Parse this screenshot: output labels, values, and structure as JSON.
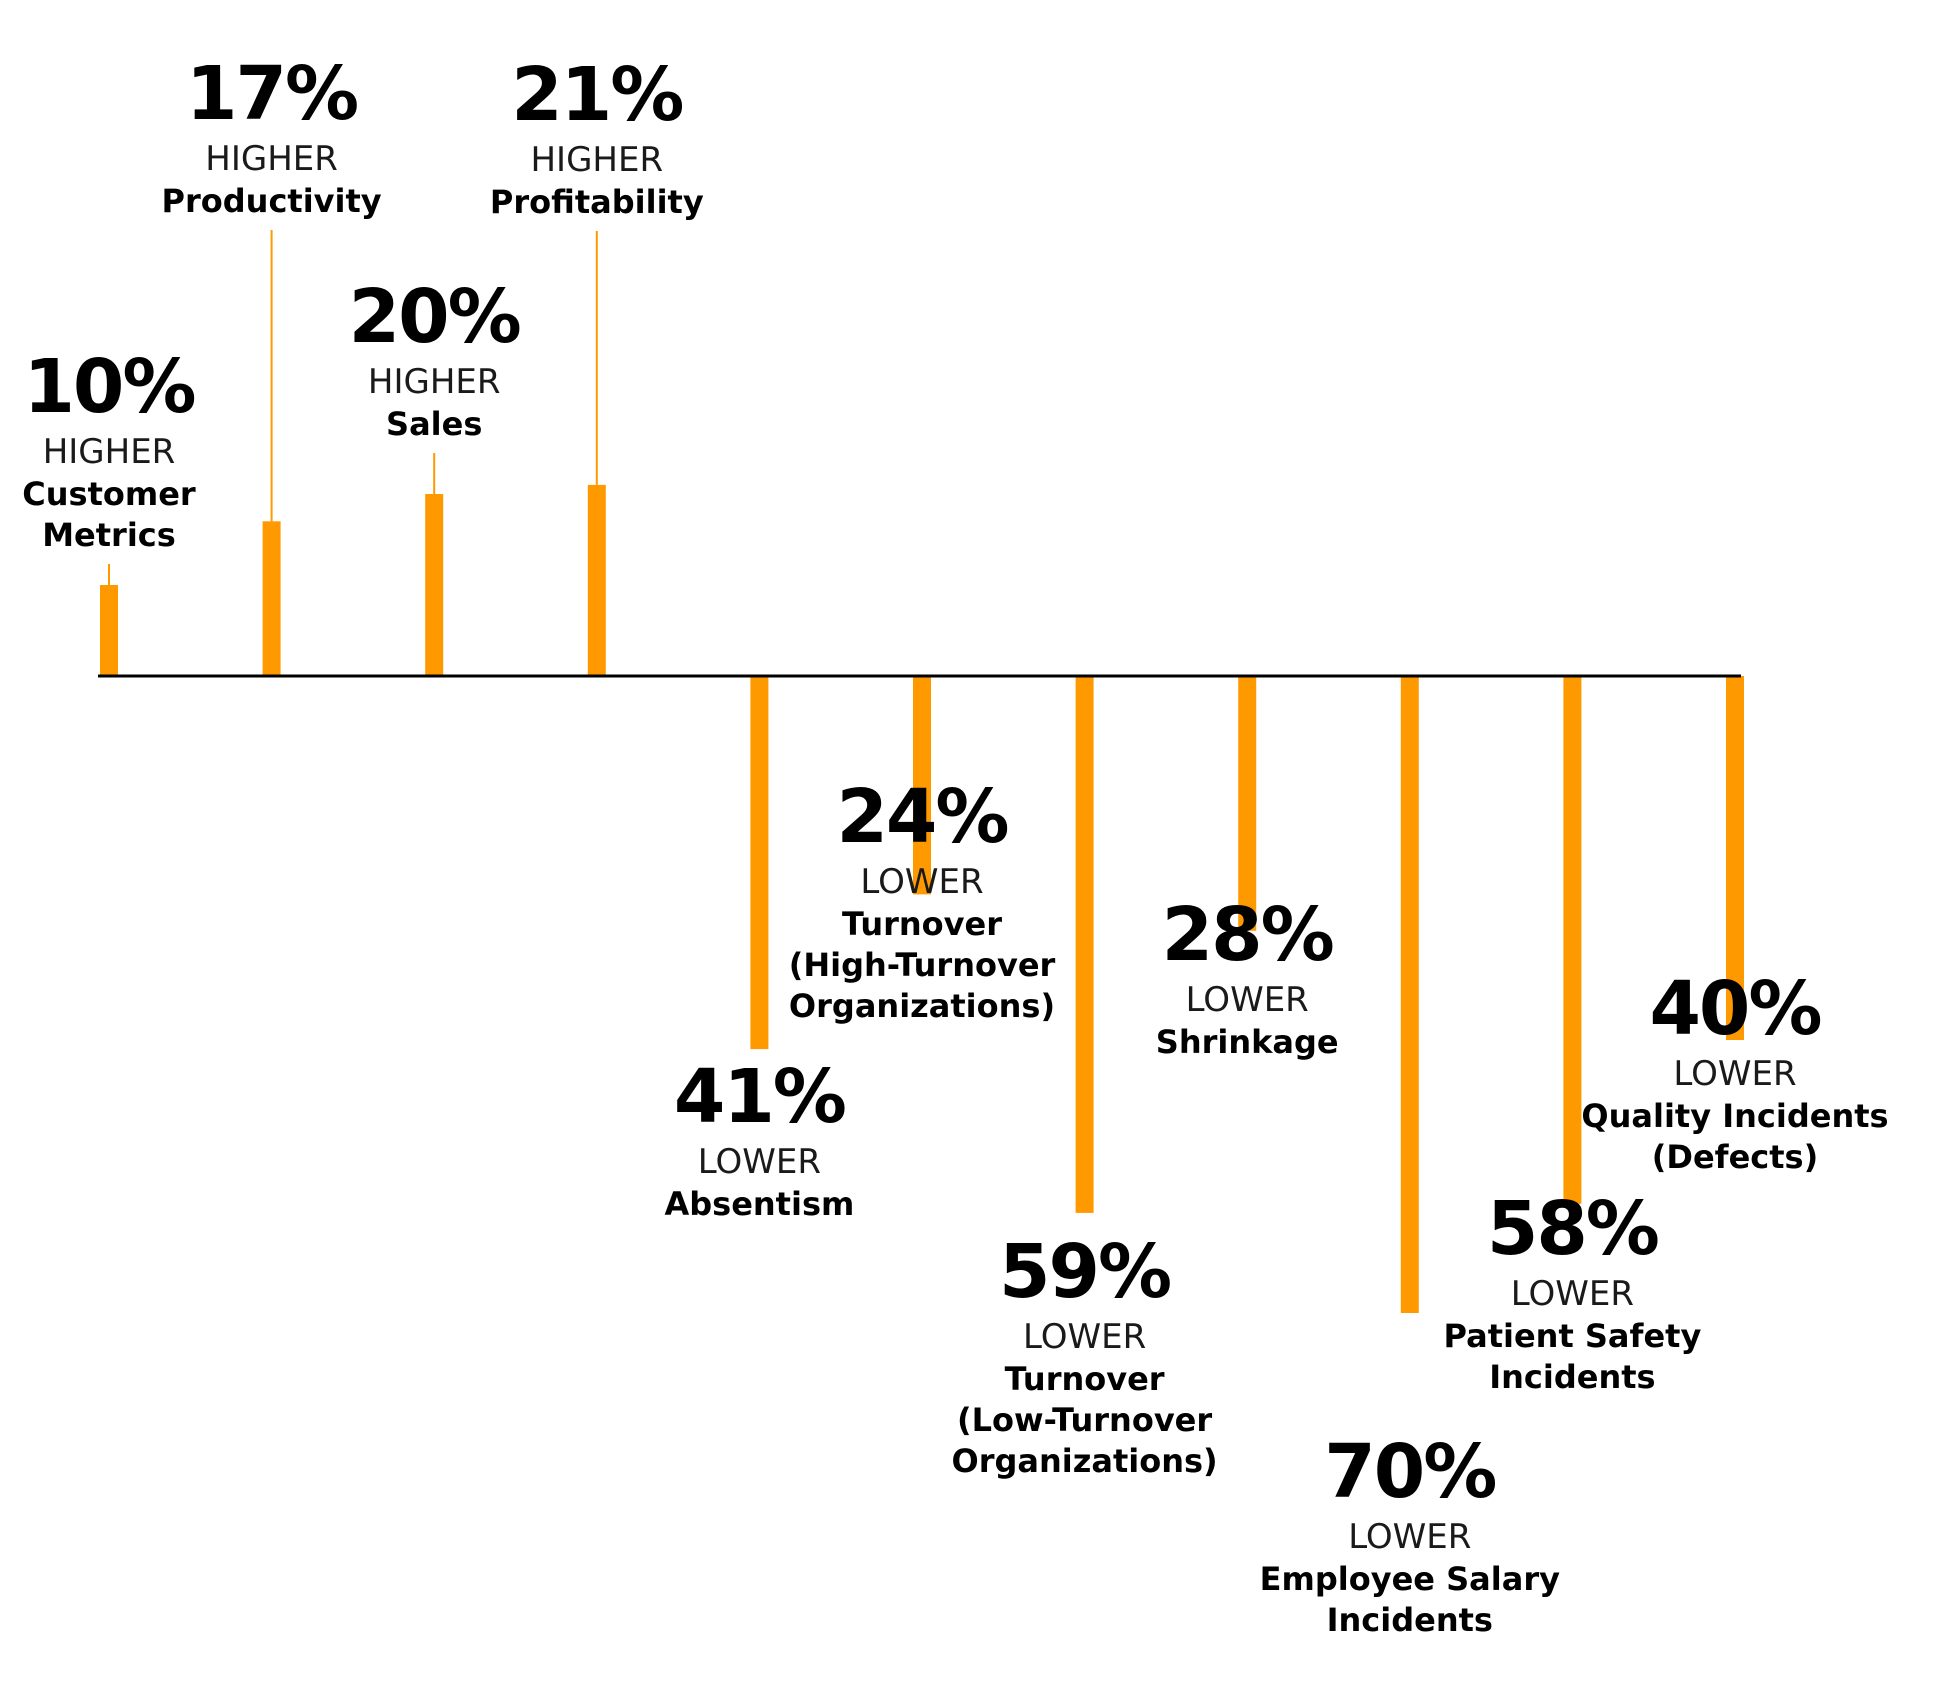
{
  "chart_data": {
    "type": "bar",
    "colors": {
      "bar": "#FF9900",
      "axis": "#000000",
      "text": "#000000"
    },
    "ylim": [
      -70,
      21
    ],
    "grid": false,
    "categories": [
      {
        "value": 10,
        "percent_label": "10%",
        "direction": "HIGHER",
        "label_lines": [
          "Customer",
          "Metrics"
        ]
      },
      {
        "value": 17,
        "percent_label": "17%",
        "direction": "HIGHER",
        "label_lines": [
          "Productivity"
        ]
      },
      {
        "value": 20,
        "percent_label": "20%",
        "direction": "HIGHER",
        "label_lines": [
          "Sales"
        ]
      },
      {
        "value": 21,
        "percent_label": "21%",
        "direction": "HIGHER",
        "label_lines": [
          "Profitability"
        ]
      },
      {
        "value": -41,
        "percent_label": "41%",
        "direction": "LOWER",
        "label_lines": [
          "Absentism"
        ]
      },
      {
        "value": -24,
        "percent_label": "24%",
        "direction": "LOWER",
        "label_lines": [
          "Turnover",
          "(High-Turnover",
          "Organizations)"
        ]
      },
      {
        "value": -59,
        "percent_label": "59%",
        "direction": "LOWER",
        "label_lines": [
          "Turnover",
          "(Low-Turnover",
          "Organizations)"
        ]
      },
      {
        "value": -28,
        "percent_label": "28%",
        "direction": "LOWER",
        "label_lines": [
          "Shrinkage"
        ]
      },
      {
        "value": -70,
        "percent_label": "70%",
        "direction": "LOWER",
        "label_lines": [
          "Employee Salary",
          "Incidents"
        ]
      },
      {
        "value": -58,
        "percent_label": "58%",
        "direction": "LOWER",
        "label_lines": [
          "Patient Safety",
          "Incidents"
        ]
      },
      {
        "value": -40,
        "percent_label": "40%",
        "direction": "LOWER",
        "label_lines": [
          "Quality Incidents",
          "(Defects)"
        ]
      }
    ]
  }
}
